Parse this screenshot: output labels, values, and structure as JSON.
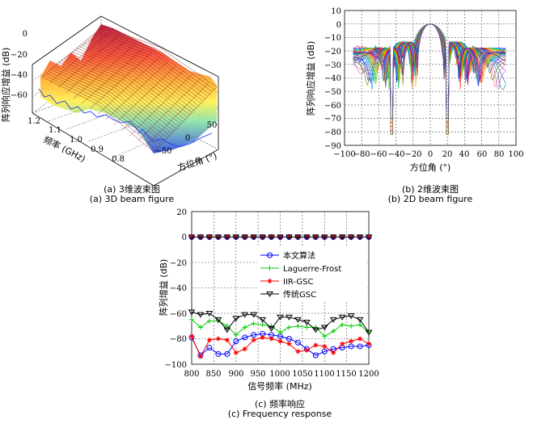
{
  "chart_data": [
    {
      "id": "a",
      "type": "surface",
      "caption_cn": "(a) 3维波束图",
      "caption_en": "(a) 3D beam figure",
      "zlabel": "阵列响应增益 (dB)",
      "ylabel": "频率 (GHz)",
      "xlabel": "方位角 (°)",
      "zticks": [
        "0",
        "−20",
        "−40",
        "−60"
      ],
      "yticks": [
        "1.2",
        "1.1",
        "1.0",
        "0.9",
        "0.8"
      ],
      "xticks": [
        "−50",
        "0",
        "50"
      ]
    },
    {
      "id": "b",
      "type": "line",
      "caption_cn": "(b) 2维波束图",
      "caption_en": "(b) 2D beam figure",
      "xlabel": "方位角 (°)",
      "ylabel": "阵列响应增益 (dB)",
      "xlim": [
        -100,
        100
      ],
      "ylim": [
        -90,
        10
      ],
      "xticks": [
        "−100",
        "−80",
        "−60",
        "−40",
        "−20",
        "0",
        "20",
        "40",
        "60",
        "80",
        "100"
      ],
      "yticks": [
        "10",
        "0",
        "−10",
        "−20",
        "−30",
        "−40",
        "−50",
        "−60",
        "−70",
        "−80",
        "−90"
      ]
    },
    {
      "id": "c",
      "type": "line",
      "caption_cn": "(c) 频率响应",
      "caption_en": "(c) Frequency response",
      "xlabel": "信号频率 (MHz)",
      "ylabel": "阵列增益 (dB)",
      "xlim": [
        800,
        1200
      ],
      "ylim": [
        -100,
        20
      ],
      "xticks": [
        "800",
        "850",
        "900",
        "950",
        "1000",
        "1050",
        "1100",
        "1150",
        "1200"
      ],
      "yticks": [
        "20",
        "0",
        "−20",
        "−40",
        "−60",
        "−80",
        "−100"
      ],
      "x": [
        800,
        820,
        840,
        860,
        880,
        900,
        920,
        940,
        960,
        980,
        1000,
        1020,
        1040,
        1060,
        1080,
        1100,
        1120,
        1140,
        1160,
        1180,
        1200
      ],
      "series": [
        {
          "name": "本文算法",
          "color": "#0000ff",
          "marker": "circle",
          "zero": [
            0,
            0,
            0,
            0,
            0,
            0,
            0,
            0,
            0,
            0,
            0,
            0,
            0,
            0,
            0,
            0,
            0,
            0,
            0,
            0,
            0
          ],
          "values": [
            -79,
            -93,
            -87,
            -92,
            -92,
            -82,
            -79,
            -77,
            -76,
            -77,
            -78,
            -80,
            -83,
            -88,
            -93,
            -90,
            -88,
            -87,
            -86,
            -86,
            -85
          ]
        },
        {
          "name": "Laguerre-Frost",
          "color": "#00cc00",
          "marker": "plus",
          "zero": [
            0,
            0,
            0,
            0,
            0,
            0,
            0,
            0,
            0,
            0,
            0,
            0,
            0,
            0,
            0,
            0,
            0,
            0,
            0,
            0,
            0
          ],
          "values": [
            -65,
            -71,
            -66,
            -66,
            -70,
            -77,
            -71,
            -68,
            -69,
            -70,
            -75,
            -71,
            -70,
            -71,
            -71,
            -78,
            -74,
            -69,
            -70,
            -69,
            -75
          ]
        },
        {
          "name": "IIR-GSC",
          "color": "#ff0000",
          "marker": "star",
          "zero": [
            0,
            0,
            0,
            0,
            0,
            0,
            0,
            0,
            0,
            0,
            0,
            0,
            0,
            0,
            0,
            0,
            0,
            0,
            0,
            0,
            0
          ],
          "values": [
            -78,
            -94,
            -81,
            -80,
            -81,
            -91,
            -88,
            -81,
            -79,
            -80,
            -82,
            -84,
            -90,
            -89,
            -85,
            -86,
            -91,
            -84,
            -82,
            -80,
            -84
          ]
        },
        {
          "name": "传统GSC",
          "color": "#000000",
          "marker": "triangle-down",
          "zero": [
            0,
            0,
            0,
            0,
            0,
            0,
            0,
            0,
            0,
            0,
            0,
            0,
            0,
            0,
            0,
            0,
            0,
            0,
            0,
            0,
            0
          ],
          "values": [
            -59,
            -61,
            -60,
            -65,
            -73,
            -64,
            -61,
            -61,
            -65,
            -72,
            -63,
            -63,
            -65,
            -67,
            -73,
            -71,
            -65,
            -63,
            -62,
            -65,
            -75
          ]
        }
      ]
    }
  ]
}
